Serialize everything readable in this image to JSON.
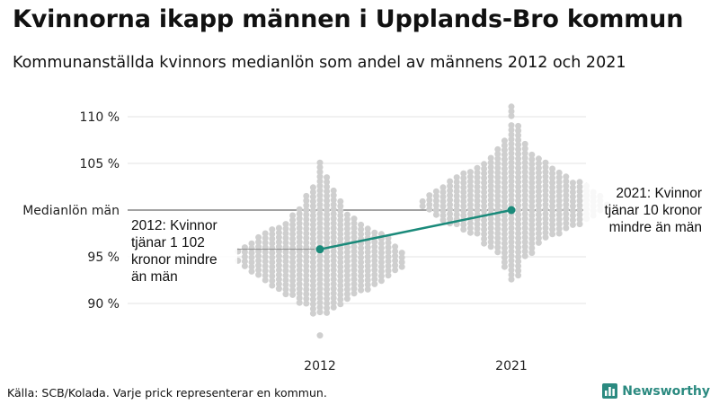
{
  "title": "Kvinnorna ikapp männen i Upplands-Bro kommun",
  "subtitle": "Kommunanställda kvinnors medianlön som andel av männens 2012 och 2021",
  "source": "Källa: SCB/Kolada. Varje prick representerar en kommun.",
  "brand": {
    "name": "Newsworthy",
    "logo_icon": "newsworthy-logo-icon",
    "color": "#2b8a80"
  },
  "colors": {
    "dots": "#cfcfcf",
    "highlight": "#1a8a7a",
    "grid": "#e3e3e3",
    "reference": "#444444"
  },
  "chart_data": {
    "type": "scatter",
    "subtype": "beeswarm",
    "title": "Kvinnorna ikapp männen i Upplands-Bro kommun",
    "subtitle": "Kommunanställda kvinnors medianlön som andel av männens 2012 och 2021",
    "categories": [
      "2012",
      "2021"
    ],
    "ylim": [
      86,
      112
    ],
    "yticks": [
      {
        "value": 90,
        "label": "90 %"
      },
      {
        "value": 95,
        "label": "95 %"
      },
      {
        "value": 100,
        "label": "Medianlön män"
      },
      {
        "value": 105,
        "label": "105 %"
      },
      {
        "value": 110,
        "label": "110 %"
      }
    ],
    "grid": true,
    "reference_line": {
      "value": 100,
      "label": "Medianlön män"
    },
    "distribution": [
      {
        "category": "2012",
        "bins": [
          {
            "y": 86.5,
            "n": 1
          },
          {
            "y": 89,
            "n": 3
          },
          {
            "y": 89.5,
            "n": 4
          },
          {
            "y": 90,
            "n": 7
          },
          {
            "y": 90.5,
            "n": 8
          },
          {
            "y": 91,
            "n": 11
          },
          {
            "y": 91.5,
            "n": 14
          },
          {
            "y": 92,
            "n": 16
          },
          {
            "y": 92.5,
            "n": 18
          },
          {
            "y": 93,
            "n": 20
          },
          {
            "y": 93.5,
            "n": 22
          },
          {
            "y": 94,
            "n": 24
          },
          {
            "y": 94.5,
            "n": 25
          },
          {
            "y": 95,
            "n": 24
          },
          {
            "y": 95.5,
            "n": 25
          },
          {
            "y": 96,
            "n": 23
          },
          {
            "y": 96.5,
            "n": 21
          },
          {
            "y": 97,
            "n": 20
          },
          {
            "y": 97.5,
            "n": 18
          },
          {
            "y": 98,
            "n": 15
          },
          {
            "y": 98.5,
            "n": 12
          },
          {
            "y": 99,
            "n": 10
          },
          {
            "y": 99.5,
            "n": 9
          },
          {
            "y": 100,
            "n": 7
          },
          {
            "y": 100.5,
            "n": 6
          },
          {
            "y": 101,
            "n": 6
          },
          {
            "y": 101.5,
            "n": 5
          },
          {
            "y": 102,
            "n": 4
          },
          {
            "y": 102.5,
            "n": 3
          },
          {
            "y": 103,
            "n": 2
          },
          {
            "y": 103.5,
            "n": 2
          },
          {
            "y": 104,
            "n": 1
          },
          {
            "y": 104.5,
            "n": 1
          },
          {
            "y": 105,
            "n": 1
          }
        ]
      },
      {
        "category": "2021",
        "bins": [
          {
            "y": 92.5,
            "n": 1
          },
          {
            "y": 93,
            "n": 2
          },
          {
            "y": 93.5,
            "n": 2
          },
          {
            "y": 94,
            "n": 3
          },
          {
            "y": 94.5,
            "n": 3
          },
          {
            "y": 95,
            "n": 4
          },
          {
            "y": 95.5,
            "n": 6
          },
          {
            "y": 96,
            "n": 7
          },
          {
            "y": 96.5,
            "n": 9
          },
          {
            "y": 97,
            "n": 10
          },
          {
            "y": 97.5,
            "n": 14
          },
          {
            "y": 98,
            "n": 16
          },
          {
            "y": 98.5,
            "n": 20
          },
          {
            "y": 99,
            "n": 22
          },
          {
            "y": 99.5,
            "n": 24
          },
          {
            "y": 100,
            "n": 26
          },
          {
            "y": 100.5,
            "n": 28
          },
          {
            "y": 101,
            "n": 27
          },
          {
            "y": 101.5,
            "n": 26
          },
          {
            "y": 102,
            "n": 24
          },
          {
            "y": 102.5,
            "n": 22
          },
          {
            "y": 103,
            "n": 20
          },
          {
            "y": 103.5,
            "n": 17
          },
          {
            "y": 104,
            "n": 15
          },
          {
            "y": 104.5,
            "n": 12
          },
          {
            "y": 105,
            "n": 10
          },
          {
            "y": 105.5,
            "n": 8
          },
          {
            "y": 106,
            "n": 6
          },
          {
            "y": 106.5,
            "n": 5
          },
          {
            "y": 107,
            "n": 4
          },
          {
            "y": 107.5,
            "n": 3
          },
          {
            "y": 108,
            "n": 2
          },
          {
            "y": 108.5,
            "n": 2
          },
          {
            "y": 109,
            "n": 2
          },
          {
            "y": 110,
            "n": 1
          },
          {
            "y": 110.5,
            "n": 1
          },
          {
            "y": 111,
            "n": 1
          }
        ]
      }
    ],
    "highlight": {
      "series": [
        {
          "x": "2012",
          "y": 95.8
        },
        {
          "x": "2021",
          "y": 100
        }
      ],
      "annotations": [
        {
          "x": "2012",
          "lines": [
            "2012: Kvinnor",
            "tjänar 1 102",
            "kronor mindre",
            "än män"
          ]
        },
        {
          "x": "2021",
          "lines": [
            "2021: Kvinnor",
            "tjänar 10 kronor",
            "mindre än män"
          ]
        }
      ]
    }
  }
}
